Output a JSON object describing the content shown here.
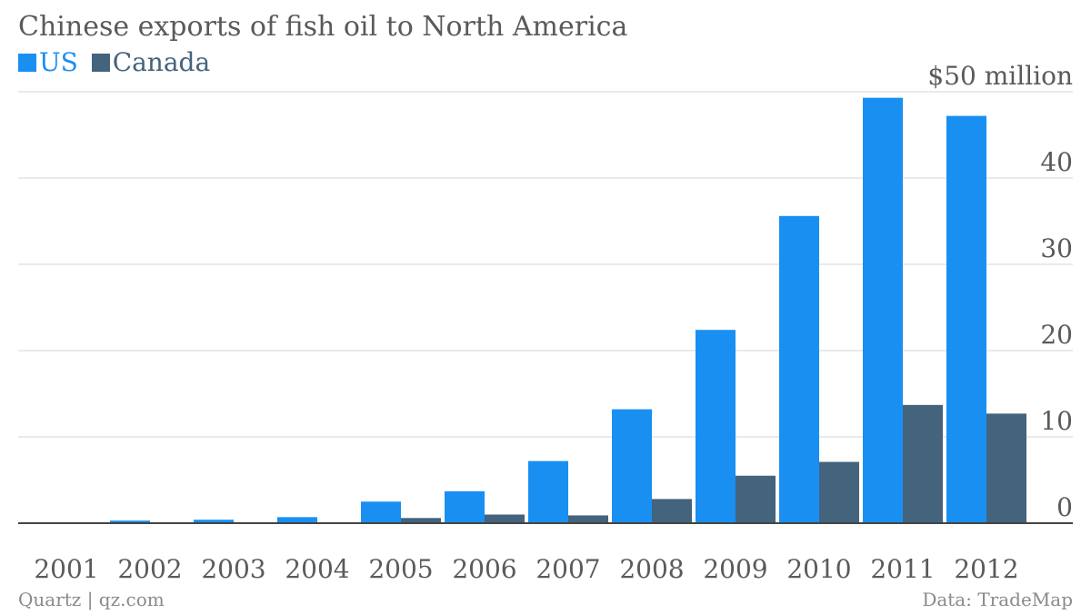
{
  "chart_data": {
    "type": "bar",
    "title": "Chinese exports of fish oil to North America",
    "categories": [
      "2001",
      "2002",
      "2003",
      "2004",
      "2005",
      "2006",
      "2007",
      "2008",
      "2009",
      "2010",
      "2011",
      "2012"
    ],
    "series": [
      {
        "name": "US",
        "color": "#1a8ff2",
        "values": [
          0.0,
          0.3,
          0.4,
          0.7,
          2.5,
          3.7,
          7.2,
          13.2,
          22.4,
          35.6,
          49.3,
          47.2
        ]
      },
      {
        "name": "Canada",
        "color": "#44637d",
        "values": [
          0.0,
          0.0,
          0.0,
          0.0,
          0.6,
          1.0,
          0.9,
          2.8,
          5.5,
          7.1,
          13.7,
          12.7
        ]
      }
    ],
    "y_ticks": [
      {
        "value": 0,
        "label": "0"
      },
      {
        "value": 10,
        "label": "10"
      },
      {
        "value": 20,
        "label": "20"
      },
      {
        "value": 30,
        "label": "30"
      },
      {
        "value": 40,
        "label": "40"
      },
      {
        "value": 50,
        "label": "$50 million"
      }
    ],
    "ylim": [
      0,
      50
    ],
    "y_axis_side": "right",
    "grid": true
  },
  "footer": {
    "source_left": "Quartz | qz.com",
    "source_right": "Data: TradeMap"
  }
}
